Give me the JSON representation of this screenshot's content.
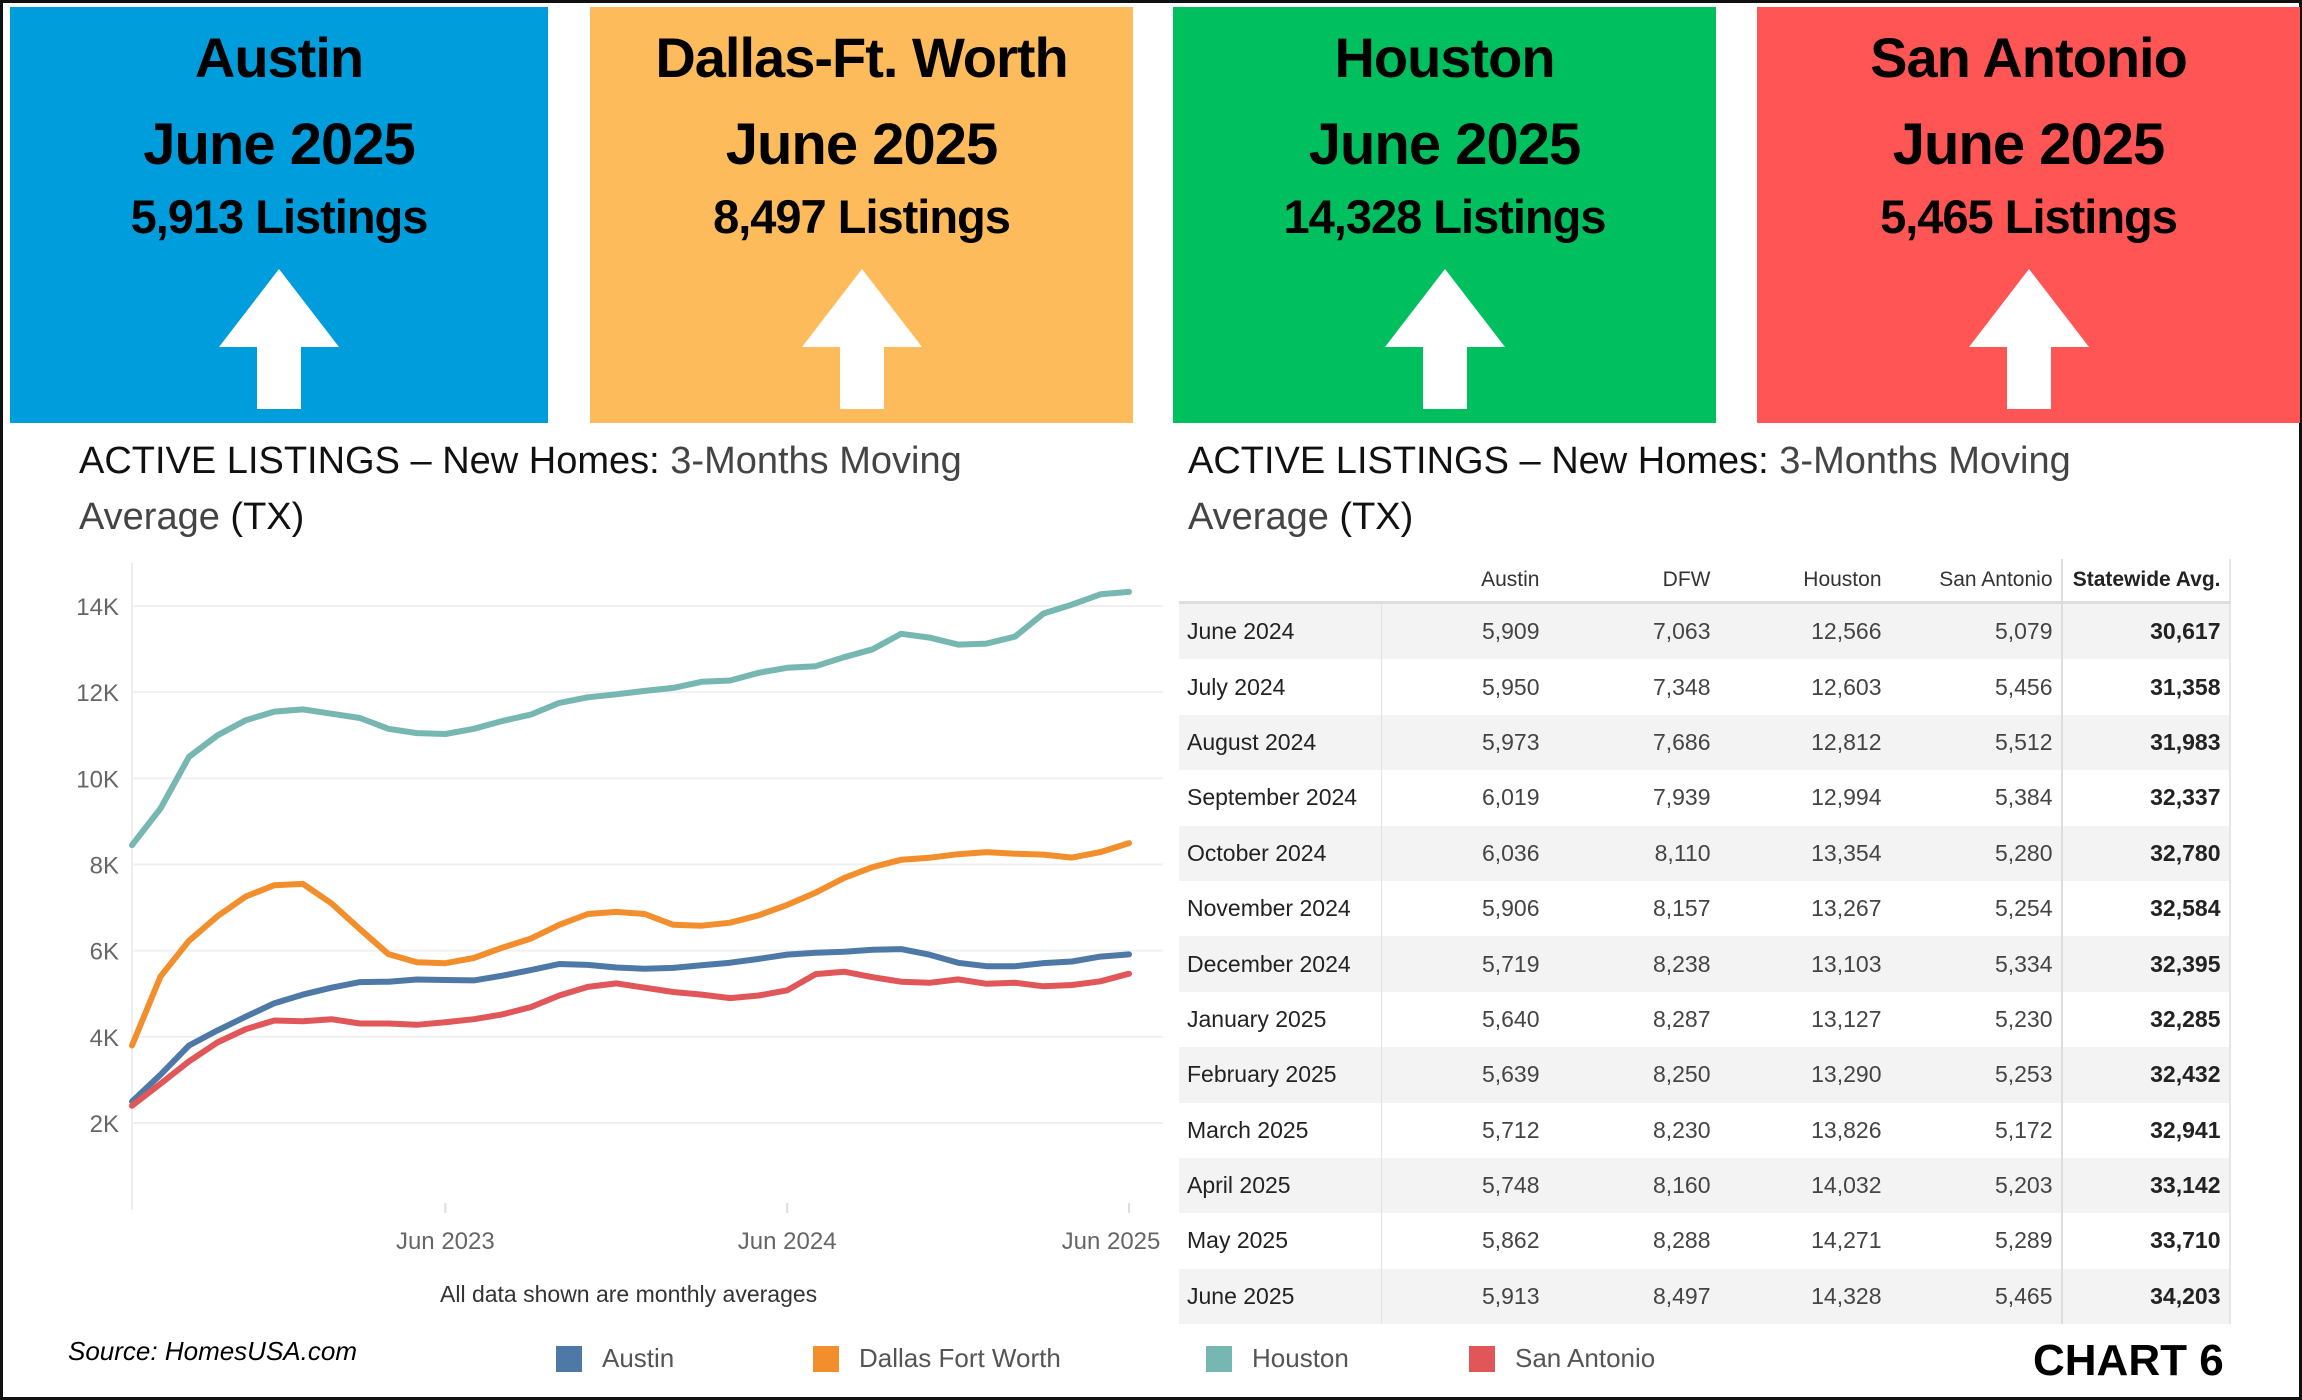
{
  "boxes": [
    {
      "city": "Austin",
      "month": "June 2025",
      "count": "5,913 Listings",
      "color": "#009DDC",
      "trend": "up-arrow"
    },
    {
      "city": "Dallas-Ft. Worth",
      "month": "June 2025",
      "count": "8,497 Listings",
      "color": "#FDBB5B",
      "trend": "up-arrow"
    },
    {
      "city": "Houston",
      "month": "June 2025",
      "count": "14,328 Listings",
      "color": "#00BF5F",
      "trend": "up-arrow"
    },
    {
      "city": "San Antonio",
      "month": "June 2025",
      "count": "5,465 Listings",
      "color": "#FF5555",
      "trend": "up-arrow"
    }
  ],
  "left_title": {
    "dark": "ACTIVE LISTINGS – New Homes:",
    "light": " 3-Months  Moving Average",
    "tail": " (TX)"
  },
  "right_title": {
    "dark": "ACTIVE LISTINGS – New Homes:",
    "light": " 3-Months  Moving Average",
    "tail": " (TX)"
  },
  "note": "All data shown are monthly averages",
  "source": "Source: HomesUSA.com",
  "chart_label": "CHART 6",
  "chart_data": {
    "type": "line",
    "ylim": [
      0,
      14500
    ],
    "yticks": [
      {
        "v": 2000,
        "label": "2K"
      },
      {
        "v": 4000,
        "label": "4K"
      },
      {
        "v": 6000,
        "label": "6K"
      },
      {
        "v": 8000,
        "label": "8K"
      },
      {
        "v": 10000,
        "label": "10K"
      },
      {
        "v": 12000,
        "label": "12K"
      },
      {
        "v": 14000,
        "label": "14K"
      }
    ],
    "xticks": [
      {
        "x": "2023-06",
        "label": "Jun 2023"
      },
      {
        "x": "2024-06",
        "label": "Jun 2024"
      },
      {
        "x": "2025-06",
        "label": "Jun 2025"
      }
    ],
    "grid": true,
    "legend_position": "bottom",
    "x": [
      "2022-07",
      "2022-08",
      "2022-09",
      "2022-10",
      "2022-11",
      "2022-12",
      "2023-01",
      "2023-02",
      "2023-03",
      "2023-04",
      "2023-05",
      "2023-06",
      "2023-07",
      "2023-08",
      "2023-09",
      "2023-10",
      "2023-11",
      "2023-12",
      "2024-01",
      "2024-02",
      "2024-03",
      "2024-04",
      "2024-05",
      "2024-06",
      "2024-07",
      "2024-08",
      "2024-09",
      "2024-10",
      "2024-11",
      "2024-12",
      "2025-01",
      "2025-02",
      "2025-03",
      "2025-04",
      "2025-05",
      "2025-06"
    ],
    "series": [
      {
        "name": "Austin",
        "color": "#4E79A7",
        "values": [
          2500,
          3120,
          3800,
          4150,
          4470,
          4780,
          4980,
          5140,
          5270,
          5280,
          5330,
          5320,
          5310,
          5420,
          5550,
          5690,
          5670,
          5610,
          5580,
          5600,
          5660,
          5720,
          5810,
          5909,
          5950,
          5973,
          6019,
          6036,
          5906,
          5719,
          5640,
          5639,
          5712,
          5748,
          5862,
          5913
        ]
      },
      {
        "name": "Dallas Fort Worth",
        "color": "#F28E2B",
        "values": [
          3800,
          5400,
          6230,
          6800,
          7260,
          7520,
          7550,
          7100,
          6500,
          5920,
          5730,
          5710,
          5830,
          6070,
          6280,
          6600,
          6850,
          6900,
          6850,
          6600,
          6580,
          6650,
          6820,
          7063,
          7348,
          7686,
          7939,
          8110,
          8157,
          8238,
          8287,
          8250,
          8230,
          8160,
          8288,
          8497
        ]
      },
      {
        "name": "Houston",
        "color": "#76B7B2",
        "values": [
          8450,
          9300,
          10500,
          11000,
          11350,
          11550,
          11600,
          11500,
          11400,
          11150,
          11050,
          11030,
          11150,
          11330,
          11480,
          11750,
          11880,
          11950,
          12030,
          12100,
          12240,
          12270,
          12450,
          12566,
          12603,
          12812,
          12994,
          13354,
          13267,
          13103,
          13127,
          13290,
          13826,
          14032,
          14271,
          14328
        ]
      },
      {
        "name": "San Antonio",
        "color": "#E15759",
        "values": [
          2400,
          2910,
          3430,
          3870,
          4180,
          4380,
          4360,
          4410,
          4310,
          4310,
          4280,
          4340,
          4410,
          4520,
          4690,
          4960,
          5160,
          5240,
          5140,
          5040,
          4980,
          4900,
          4960,
          5079,
          5456,
          5512,
          5384,
          5280,
          5254,
          5334,
          5230,
          5253,
          5172,
          5203,
          5289,
          5465
        ]
      }
    ]
  },
  "table": {
    "columns": [
      "",
      "Austin",
      "DFW",
      "Houston",
      "San Antonio",
      "Statewide Avg."
    ],
    "rows": [
      [
        "June 2024",
        "5,909",
        "7,063",
        "12,566",
        "5,079",
        "30,617"
      ],
      [
        "July 2024",
        "5,950",
        "7,348",
        "12,603",
        "5,456",
        "31,358"
      ],
      [
        "August 2024",
        "5,973",
        "7,686",
        "12,812",
        "5,512",
        "31,983"
      ],
      [
        "September 2024",
        "6,019",
        "7,939",
        "12,994",
        "5,384",
        "32,337"
      ],
      [
        "October 2024",
        "6,036",
        "8,110",
        "13,354",
        "5,280",
        "32,780"
      ],
      [
        "November 2024",
        "5,906",
        "8,157",
        "13,267",
        "5,254",
        "32,584"
      ],
      [
        "December 2024",
        "5,719",
        "8,238",
        "13,103",
        "5,334",
        "32,395"
      ],
      [
        "January 2025",
        "5,640",
        "8,287",
        "13,127",
        "5,230",
        "32,285"
      ],
      [
        "February 2025",
        "5,639",
        "8,250",
        "13,290",
        "5,253",
        "32,432"
      ],
      [
        "March 2025",
        "5,712",
        "8,230",
        "13,826",
        "5,172",
        "32,941"
      ],
      [
        "April 2025",
        "5,748",
        "8,160",
        "14,032",
        "5,203",
        "33,142"
      ],
      [
        "May 2025",
        "5,862",
        "8,288",
        "14,271",
        "5,289",
        "33,710"
      ],
      [
        "June 2025",
        "5,913",
        "8,497",
        "14,328",
        "5,465",
        "34,203"
      ]
    ]
  }
}
